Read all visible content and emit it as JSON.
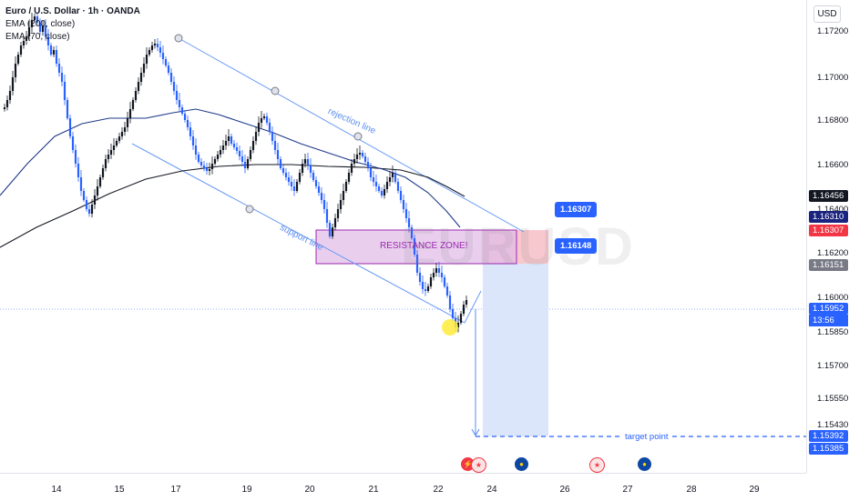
{
  "legend": {
    "symbol": "Euro / U.S. Dollar · 1h · OANDA",
    "ema1": "EMA (200, close)",
    "ema2": "EMA (70, close)"
  },
  "watermark": "EURUSD",
  "currency_button": "USD",
  "price_ticks": [
    "1.17200",
    "1.17000",
    "1.16800",
    "1.16600",
    "1.16400",
    "1.16200",
    "1.16000",
    "1.15850",
    "1.15700",
    "1.15550",
    "1.15430"
  ],
  "price_labels": {
    "ema200": "1.16456",
    "blue_level": "1.16310",
    "red_level": "1.16307",
    "grey_level": "1.16151",
    "current_price": "1.15952",
    "countdown": "13:56",
    "target_level": "1.15392",
    "target_level_2": "1.15385"
  },
  "callouts": {
    "upper": "1.16307",
    "lower": "1.16148"
  },
  "annotations": {
    "resistance_zone": "RESISTANCE ZONE!",
    "rejection_line": "rejection line",
    "support_line": "support line",
    "target_point": "target point"
  },
  "date_labels": [
    "14",
    "15",
    "17",
    "19",
    "20",
    "21",
    "22",
    "24",
    "26",
    "27",
    "28",
    "29"
  ],
  "events": [
    {
      "icon": "flag-us-icon",
      "glyph": "⚡"
    },
    {
      "icon": "flag-us-icon",
      "glyph": "★"
    },
    {
      "icon": "flag-eu-icon",
      "glyph": "●"
    },
    {
      "icon": "flag-us-icon",
      "glyph": "★"
    },
    {
      "icon": "flag-eu-icon",
      "glyph": "●"
    }
  ],
  "colors": {
    "up_candle": "#131722",
    "down_candle": "#2962ff",
    "ema200": "#131722",
    "ema70": "#1e3a8a",
    "channel": "#6a9bf4",
    "resistance_fill": "#e1bee7",
    "resistance_border": "#9c27b0",
    "target_fill": "#dbe6fb",
    "stop_fill": "#f8c8cf"
  }
}
